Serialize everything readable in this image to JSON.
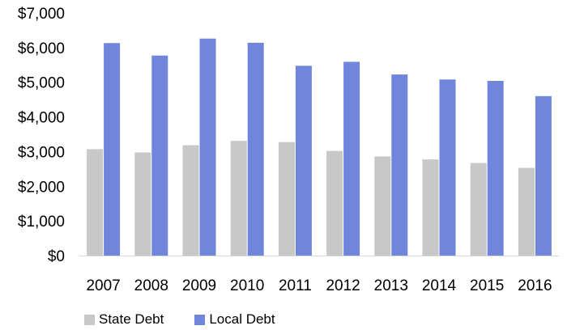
{
  "chart_data": {
    "type": "bar",
    "title": "",
    "xlabel": "",
    "ylabel": "",
    "categories": [
      "2007",
      "2008",
      "2009",
      "2010",
      "2011",
      "2012",
      "2013",
      "2014",
      "2015",
      "2016"
    ],
    "series": [
      {
        "name": "State Debt",
        "color": "#c8c8c8",
        "values": [
          3070,
          2975,
          3185,
          3310,
          3275,
          3020,
          2860,
          2775,
          2670,
          2530
        ]
      },
      {
        "name": "Local Debt",
        "color": "#6f86db",
        "values": [
          6130,
          5770,
          6260,
          6140,
          5475,
          5590,
          5225,
          5080,
          5040,
          4600
        ]
      }
    ],
    "ylim": [
      0,
      7000
    ],
    "y_ticks": [
      0,
      1000,
      2000,
      3000,
      4000,
      5000,
      6000,
      7000
    ],
    "y_tick_labels": [
      "$0",
      "$1,000",
      "$2,000",
      "$3,000",
      "$4,000",
      "$5,000",
      "$6,000",
      "$7,000"
    ],
    "grid": false,
    "legend_position": "bottom-left"
  }
}
